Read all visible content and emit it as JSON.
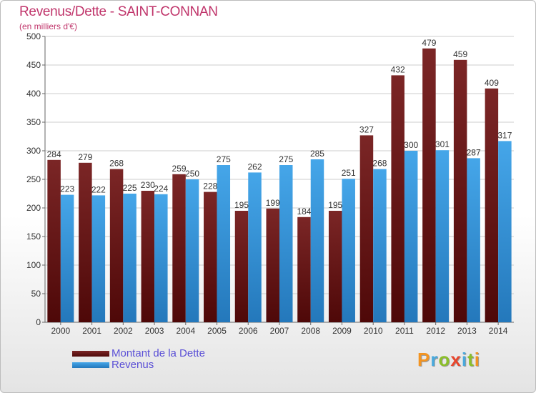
{
  "title": "Revenus/Dette - SAINT-CONNAN",
  "subtitle": "(en milliers d'€)",
  "logo": {
    "text": "Proxiti",
    "letters": [
      {
        "ch": "P",
        "color": "#f29422"
      },
      {
        "ch": "r",
        "color": "#49a9dd"
      },
      {
        "ch": "o",
        "color": "#8bbf2a"
      },
      {
        "ch": "x",
        "color": "#e8452c"
      },
      {
        "ch": "i",
        "color": "#49a9dd"
      },
      {
        "ch": "t",
        "color": "#8bbf2a"
      },
      {
        "ch": "i",
        "color": "#f29422"
      }
    ]
  },
  "colors": {
    "dette": "#7b2626",
    "dette_dark": "#4e0808",
    "revenus": "#45a6e9",
    "revenus_dark": "#2478bb",
    "grid": "#cccccc",
    "axis_text": "#333333"
  },
  "chart_data": {
    "type": "bar",
    "categories": [
      "2000",
      "2001",
      "2002",
      "2003",
      "2004",
      "2005",
      "2006",
      "2007",
      "2008",
      "2009",
      "2010",
      "2011",
      "2012",
      "2013",
      "2014"
    ],
    "series": [
      {
        "name": "Montant de la Dette",
        "values": [
          284,
          279,
          268,
          230,
          259,
          228,
          195,
          199,
          184,
          195,
          327,
          432,
          479,
          459,
          409
        ]
      },
      {
        "name": "Revenus",
        "values": [
          223,
          222,
          225,
          224,
          250,
          275,
          262,
          275,
          285,
          251,
          268,
          300,
          301,
          287,
          317
        ]
      }
    ],
    "ylim": [
      0,
      500
    ],
    "yticks": [
      0,
      50,
      100,
      150,
      200,
      250,
      300,
      350,
      400,
      450,
      500
    ],
    "grid": true,
    "legend_position": "bottom-left"
  }
}
